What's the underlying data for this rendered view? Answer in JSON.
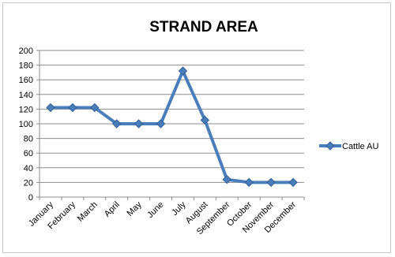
{
  "chart_data": {
    "type": "line",
    "title": "STRAND AREA",
    "xlabel": "",
    "ylabel": "",
    "categories": [
      "January",
      "February",
      "March",
      "April",
      "May",
      "June",
      "July",
      "August",
      "September",
      "October",
      "November",
      "December"
    ],
    "series": [
      {
        "name": "Cattle AU",
        "values": [
          122,
          122,
          122,
          100,
          100,
          100,
          172,
          105,
          24,
          20,
          20,
          20
        ]
      }
    ],
    "ylim": [
      0,
      200
    ],
    "yticks": [
      0,
      20,
      40,
      60,
      80,
      100,
      120,
      140,
      160,
      180,
      200
    ],
    "grid": true,
    "legend": "right",
    "colors": {
      "series": "#4a7ebb",
      "series_dark": "#2f5f98",
      "grid": "#8c8c8c",
      "axis": "#8c8c8c"
    }
  }
}
